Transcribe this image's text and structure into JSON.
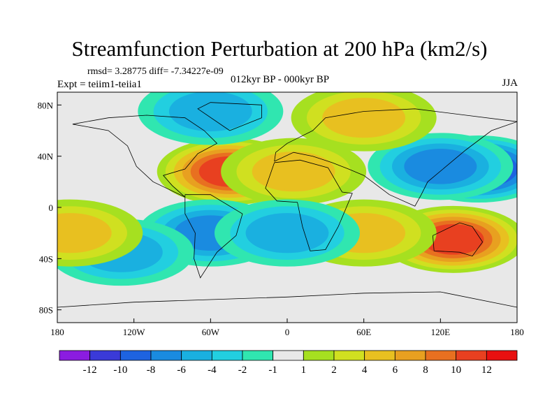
{
  "title": "Streamfunction Perturbation at 200 hPa (km2/s)",
  "stats": "rmsd= 3.28775 diff= -7.34227e-09",
  "experiment": "Expt = teiim1-teiia1",
  "period": "012kyr BP - 000kyr BP",
  "season": "JJA",
  "map": {
    "projection": "cylindrical equidistant",
    "lon_range": [
      -180,
      180
    ],
    "lat_range": [
      -90,
      90
    ],
    "lon_ticks": [
      {
        "value": -180,
        "label": "180"
      },
      {
        "value": -120,
        "label": "120W"
      },
      {
        "value": -60,
        "label": "60W"
      },
      {
        "value": 0,
        "label": "0"
      },
      {
        "value": 60,
        "label": "60E"
      },
      {
        "value": 120,
        "label": "120E"
      },
      {
        "value": 180,
        "label": "180"
      }
    ],
    "lat_ticks": [
      {
        "value": 80,
        "label": "80N"
      },
      {
        "value": 40,
        "label": "40N"
      },
      {
        "value": 0,
        "label": "0"
      },
      {
        "value": -40,
        "label": "40S"
      },
      {
        "value": -80,
        "label": "80S"
      }
    ],
    "features": [
      {
        "lon": -45,
        "lat": 28,
        "sign": 1,
        "peak": 11
      },
      {
        "lon": 5,
        "lat": 28,
        "sign": 1,
        "peak": 5
      },
      {
        "lon": 150,
        "lat": 30,
        "sign": -1,
        "peak": -11
      },
      {
        "lon": 120,
        "lat": 32,
        "sign": -1,
        "peak": -6
      },
      {
        "lon": 130,
        "lat": -25,
        "sign": 1,
        "peak": 11
      },
      {
        "lon": 60,
        "lat": -20,
        "sign": 1,
        "peak": 5
      },
      {
        "lon": -60,
        "lat": -20,
        "sign": -1,
        "peak": -6
      },
      {
        "lon": 0,
        "lat": -20,
        "sign": -1,
        "peak": -5
      },
      {
        "lon": -130,
        "lat": -35,
        "sign": -1,
        "peak": -5
      },
      {
        "lon": -170,
        "lat": -20,
        "sign": 1,
        "peak": 5
      },
      {
        "lon": -60,
        "lat": 75,
        "sign": -1,
        "peak": -5
      },
      {
        "lon": 60,
        "lat": 70,
        "sign": 1,
        "peak": 5
      }
    ]
  },
  "colorbar": {
    "labels": [
      "-12",
      "-10",
      "-8",
      "-6",
      "-4",
      "-2",
      "-1",
      "1",
      "2",
      "4",
      "6",
      "8",
      "10",
      "12"
    ],
    "colors": [
      "#8b1ce0",
      "#3a3ad8",
      "#1e63e0",
      "#1a8be0",
      "#1ab0e0",
      "#22cfe0",
      "#30e6b0",
      "#e8e8e8",
      "#a6e020",
      "#d0e020",
      "#e8c020",
      "#e8a020",
      "#e87020",
      "#e84020",
      "#e81010"
    ]
  }
}
